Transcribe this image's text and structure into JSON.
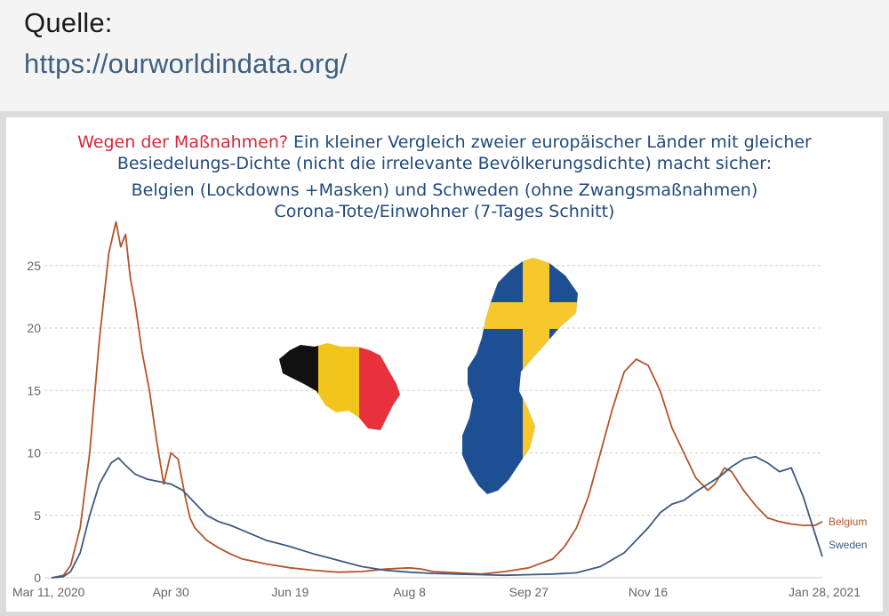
{
  "header": {
    "source_label": "Quelle:",
    "source_url": "https://ourworldindata.org/"
  },
  "chart_data": {
    "type": "line",
    "title_highlight": "Wegen der Maßnahmen?",
    "title_rest": " Ein kleiner Vergleich zweier europäischer Länder mit gleicher",
    "title_line2": "Besiedelungs-Dichte (nicht die irrelevante Bevölkerungsdichte) macht sicher:",
    "title_line3": "Belgien (Lockdowns +Masken) und Schweden (ohne Zwangsmaßnahmen)",
    "title_line4": "Corona-Tote/Einwohner (7-Tages Schnitt)",
    "x_ticks": [
      "Mar 11, 2020",
      "Apr 30",
      "Jun 19",
      "Aug 8",
      "Sep 27",
      "Nov 16",
      "Jan 28, 2021"
    ],
    "x_tick_days": [
      0,
      50,
      100,
      150,
      200,
      250,
      323
    ],
    "x_range_days": [
      0,
      323
    ],
    "y_ticks": [
      0,
      5,
      10,
      15,
      20,
      25
    ],
    "ylim": [
      0,
      27
    ],
    "grid": true,
    "legend": "inline at line ends (right)",
    "colors": {
      "belgium": "#b5542a",
      "sweden": "#3d5a80",
      "title": "#214a7b",
      "title_highlight": "#d7273a"
    },
    "series": [
      {
        "name": "Belgium",
        "x": [
          0,
          5,
          8,
          12,
          16,
          20,
          24,
          27,
          29,
          31,
          33,
          35,
          38,
          41,
          44,
          47,
          50,
          53,
          56,
          58,
          60,
          62,
          65,
          70,
          75,
          80,
          90,
          100,
          110,
          120,
          130,
          140,
          150,
          155,
          160,
          170,
          180,
          190,
          200,
          210,
          215,
          220,
          225,
          230,
          235,
          240,
          245,
          250,
          255,
          260,
          265,
          270,
          275,
          278,
          282,
          285,
          290,
          295,
          300,
          305,
          310,
          315,
          320,
          323
        ],
        "y": [
          0,
          0.2,
          1,
          4,
          10,
          19,
          26,
          28.5,
          26.5,
          27.5,
          24,
          22,
          18,
          15,
          11,
          7.5,
          10,
          9.5,
          6.5,
          4.8,
          4,
          3.6,
          3,
          2.4,
          1.9,
          1.5,
          1.1,
          0.8,
          0.6,
          0.45,
          0.5,
          0.7,
          0.8,
          0.7,
          0.5,
          0.4,
          0.3,
          0.5,
          0.8,
          1.5,
          2.5,
          4,
          6.5,
          10,
          13.5,
          16.5,
          17.5,
          17,
          15,
          12,
          10,
          8,
          7,
          7.5,
          8.8,
          8.5,
          7,
          5.8,
          4.8,
          4.5,
          4.3,
          4.2,
          4.2,
          4.5
        ]
      },
      {
        "name": "Sweden",
        "x": [
          0,
          5,
          8,
          12,
          16,
          20,
          25,
          28,
          31,
          35,
          40,
          45,
          50,
          55,
          60,
          65,
          70,
          75,
          80,
          90,
          100,
          110,
          120,
          130,
          140,
          150,
          160,
          170,
          180,
          190,
          200,
          210,
          220,
          230,
          240,
          250,
          255,
          260,
          265,
          270,
          275,
          280,
          285,
          290,
          295,
          300,
          305,
          310,
          315,
          320,
          323
        ],
        "y": [
          0,
          0.1,
          0.5,
          2,
          5,
          7.5,
          9.2,
          9.6,
          9,
          8.3,
          7.9,
          7.7,
          7.5,
          7,
          6,
          5,
          4.5,
          4.2,
          3.8,
          3,
          2.5,
          1.9,
          1.4,
          0.9,
          0.6,
          0.45,
          0.35,
          0.3,
          0.25,
          0.2,
          0.25,
          0.3,
          0.4,
          0.9,
          2,
          4,
          5.2,
          5.9,
          6.2,
          6.9,
          7.5,
          8.1,
          8.9,
          9.5,
          9.7,
          9.2,
          8.5,
          8.8,
          6.5,
          3.5,
          1.7
        ]
      }
    ]
  }
}
